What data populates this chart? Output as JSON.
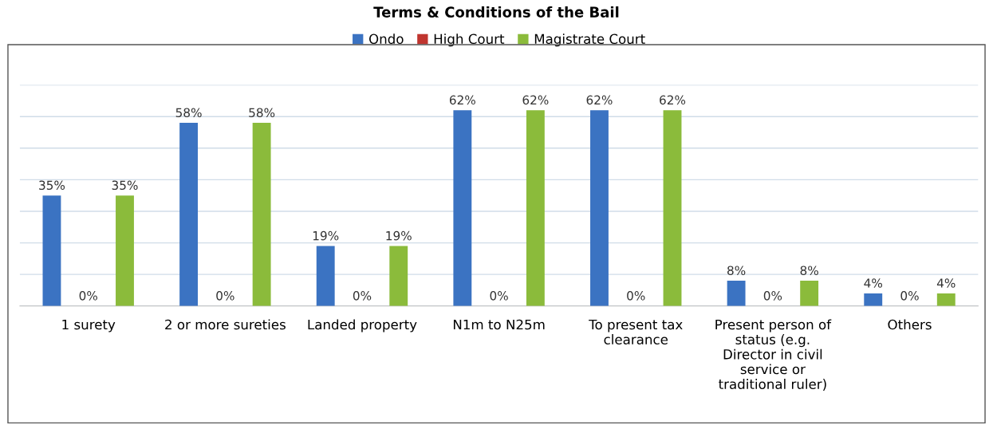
{
  "chart_data": {
    "type": "bar",
    "title": "Terms & Conditions of the Bail",
    "categories": [
      "1 surety",
      "2 or more sureties",
      "Landed property",
      "N1m to N25m",
      "To present tax clearance",
      "Present person of status (e.g. Director in civil service or traditional ruler)",
      "Others"
    ],
    "series": [
      {
        "name": "Ondo",
        "color": "#3b73c2",
        "values": [
          35,
          58,
          19,
          62,
          62,
          8,
          4
        ],
        "value_labels": [
          "35%",
          "58%",
          "19%",
          "62%",
          "62%",
          "8%",
          "4%"
        ]
      },
      {
        "name": "High Court",
        "color": "#c0352f",
        "values": [
          0,
          0,
          0,
          0,
          0,
          0,
          0
        ],
        "value_labels": [
          "0%",
          "0%",
          "0%",
          "0%",
          "0%",
          "0%",
          "0%"
        ]
      },
      {
        "name": "Magistrate Court",
        "color": "#8bbb3b",
        "values": [
          35,
          58,
          19,
          62,
          62,
          8,
          4
        ],
        "value_labels": [
          "35%",
          "58%",
          "19%",
          "62%",
          "62%",
          "8%",
          "4%"
        ]
      }
    ],
    "ylim": [
      0,
      70
    ],
    "yticks": [
      {
        "value": 0,
        "label": null
      },
      {
        "value": 10,
        "label": null
      },
      {
        "value": 20,
        "label": null
      },
      {
        "value": 30,
        "label": null
      },
      {
        "value": 40,
        "label": null
      },
      {
        "value": 50,
        "label": null
      },
      {
        "value": 60,
        "label": null
      },
      {
        "value": 70,
        "label": null
      }
    ],
    "tick_labels": "x",
    "grid": "y",
    "legend": "top"
  }
}
